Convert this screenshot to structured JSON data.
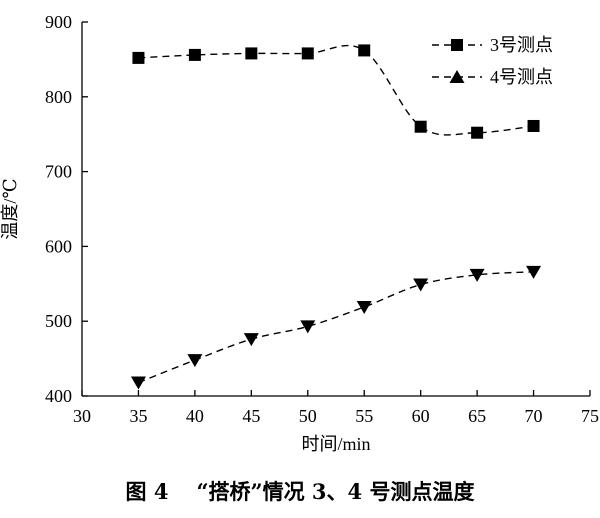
{
  "chart_data": {
    "type": "line",
    "x": [
      35,
      40,
      45,
      50,
      55,
      60,
      65,
      70
    ],
    "series": [
      {
        "name": "3号测点",
        "values": [
          852,
          856,
          858,
          858,
          862,
          760,
          752,
          761
        ],
        "marker": "square",
        "line_style": "dashed",
        "color": "#000000"
      },
      {
        "name": "4号测点",
        "values": [
          418,
          448,
          476,
          493,
          519,
          549,
          562,
          566
        ],
        "marker": "triangle-down",
        "line_style": "dashed",
        "color": "#000000"
      }
    ],
    "xlabel": "时间/min",
    "ylabel": "温度/℃",
    "xlim": [
      30,
      75
    ],
    "ylim": [
      400,
      900
    ],
    "xticks": [
      30,
      35,
      40,
      45,
      50,
      55,
      60,
      65,
      70,
      75
    ],
    "yticks": [
      400,
      500,
      600,
      700,
      800,
      900
    ],
    "grid": false,
    "legend_position": "top-right"
  },
  "caption": {
    "number": "图 4",
    "text": "“搭桥”情况 3、4 号测点温度"
  }
}
